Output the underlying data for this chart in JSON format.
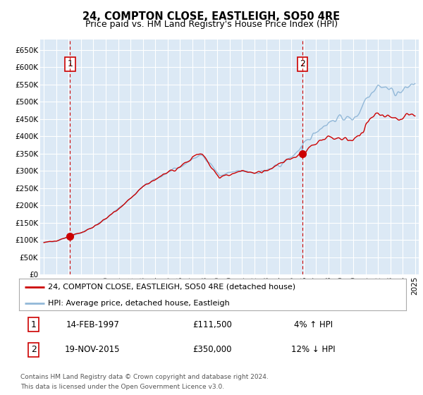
{
  "title": "24, COMPTON CLOSE, EASTLEIGH, SO50 4RE",
  "subtitle": "Price paid vs. HM Land Registry's House Price Index (HPI)",
  "ylim": [
    0,
    680000
  ],
  "yticks": [
    0,
    50000,
    100000,
    150000,
    200000,
    250000,
    300000,
    350000,
    400000,
    450000,
    500000,
    550000,
    600000,
    650000
  ],
  "ytick_labels": [
    "£0",
    "£50K",
    "£100K",
    "£150K",
    "£200K",
    "£250K",
    "£300K",
    "£350K",
    "£400K",
    "£450K",
    "£500K",
    "£550K",
    "£600K",
    "£650K"
  ],
  "sale1_year": 1997.12,
  "sale1_price": 111500,
  "sale2_year": 2015.9,
  "sale2_price": 350000,
  "sale1_date": "14-FEB-1997",
  "sale1_hpi": "4% ↑ HPI",
  "sale2_date": "19-NOV-2015",
  "sale2_hpi": "12% ↓ HPI",
  "legend_line1": "24, COMPTON CLOSE, EASTLEIGH, SO50 4RE (detached house)",
  "legend_line2": "HPI: Average price, detached house, Eastleigh",
  "footnote1": "Contains HM Land Registry data © Crown copyright and database right 2024.",
  "footnote2": "This data is licensed under the Open Government Licence v3.0.",
  "hpi_color": "#92b8d8",
  "price_color": "#cc0000",
  "dashed_color": "#cc0000",
  "bg_plot": "#dce9f5",
  "bg_fig": "#ffffff",
  "grid_color": "#ffffff"
}
